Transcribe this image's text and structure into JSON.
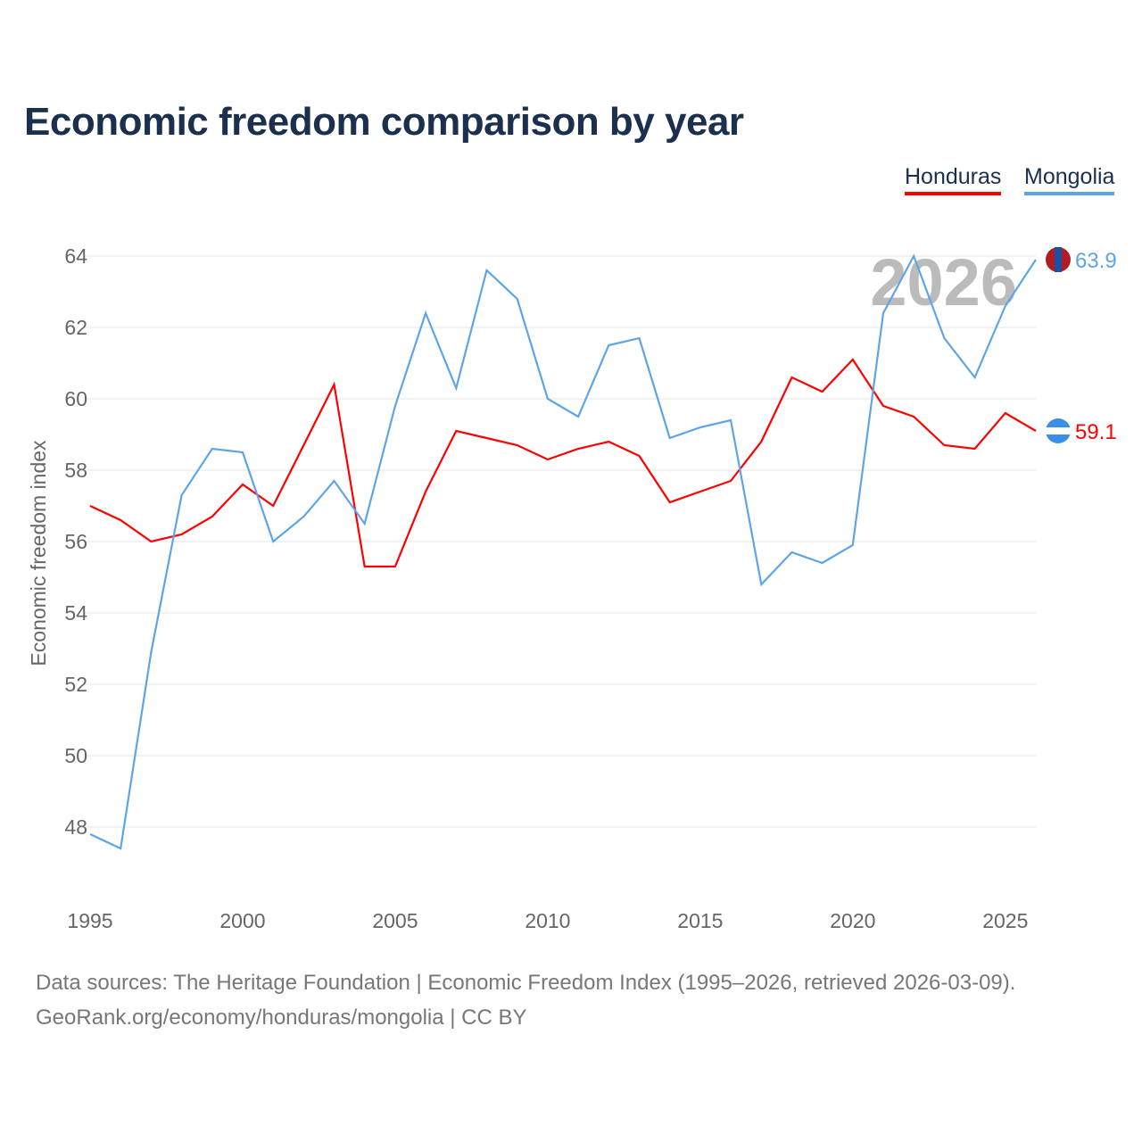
{
  "chart_data": {
    "type": "line",
    "title": "Economic freedom comparison by year",
    "xlabel": "",
    "ylabel": "Economic freedom index",
    "xlim": [
      1995,
      2026
    ],
    "ylim": [
      46.5,
      65
    ],
    "x_ticks": [
      "1995",
      "2000",
      "2005",
      "2010",
      "2015",
      "2020",
      "2025"
    ],
    "y_ticks": [
      "48",
      "50",
      "52",
      "54",
      "56",
      "58",
      "60",
      "62",
      "64"
    ],
    "grid": true,
    "legend_placement": "top-right",
    "year_watermark": "2026",
    "x": [
      1995,
      1996,
      1997,
      1998,
      1999,
      2000,
      2001,
      2002,
      2003,
      2004,
      2005,
      2006,
      2007,
      2008,
      2009,
      2010,
      2011,
      2012,
      2013,
      2014,
      2015,
      2016,
      2017,
      2018,
      2019,
      2020,
      2021,
      2022,
      2023,
      2024,
      2025,
      2026
    ],
    "series": [
      {
        "name": "Honduras",
        "color": "#ff0000",
        "end_label": "59.1",
        "values": [
          57.0,
          56.6,
          56.0,
          56.2,
          56.7,
          57.6,
          57.0,
          58.7,
          60.4,
          55.3,
          55.3,
          57.4,
          59.1,
          58.9,
          58.7,
          58.3,
          58.6,
          58.8,
          58.4,
          57.1,
          57.4,
          57.7,
          58.8,
          60.6,
          60.2,
          61.1,
          59.8,
          59.5,
          58.7,
          58.6,
          59.6,
          59.1
        ]
      },
      {
        "name": "Mongolia",
        "color": "#5ea5e8",
        "end_label": "63.9",
        "values": [
          47.8,
          47.4,
          52.9,
          57.3,
          58.6,
          58.5,
          56.0,
          56.7,
          57.7,
          56.5,
          59.8,
          62.4,
          60.3,
          63.6,
          62.8,
          60.0,
          59.5,
          61.5,
          61.7,
          58.9,
          59.2,
          59.4,
          54.8,
          55.7,
          55.4,
          55.9,
          62.4,
          64.0,
          61.7,
          60.6,
          62.6,
          63.9
        ]
      }
    ]
  },
  "footer": {
    "line1": "Data sources: The Heritage Foundation | Economic Freedom Index (1995–2026, retrieved 2026-03-09).",
    "line2": "GeoRank.org/economy/honduras/mongolia | CC BY"
  }
}
